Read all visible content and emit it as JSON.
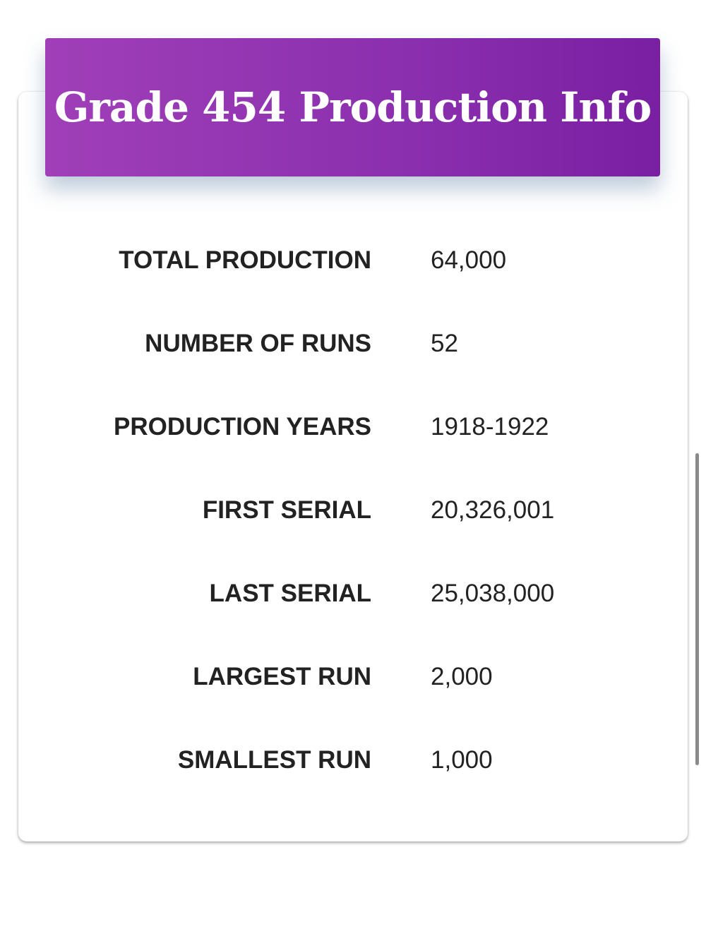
{
  "header": {
    "title": "Grade 454 Production Info"
  },
  "table": {
    "rows": [
      [
        "TOTAL PRODUCTION",
        "64,000"
      ],
      [
        "NUMBER OF RUNS",
        "52"
      ],
      [
        "PRODUCTION YEARS",
        "1918-1922"
      ],
      [
        "FIRST SERIAL",
        "20,326,001"
      ],
      [
        "LAST SERIAL",
        "25,038,000"
      ],
      [
        "LARGEST RUN",
        "2,000"
      ],
      [
        "SMALLEST RUN",
        "1,000"
      ]
    ]
  }
}
